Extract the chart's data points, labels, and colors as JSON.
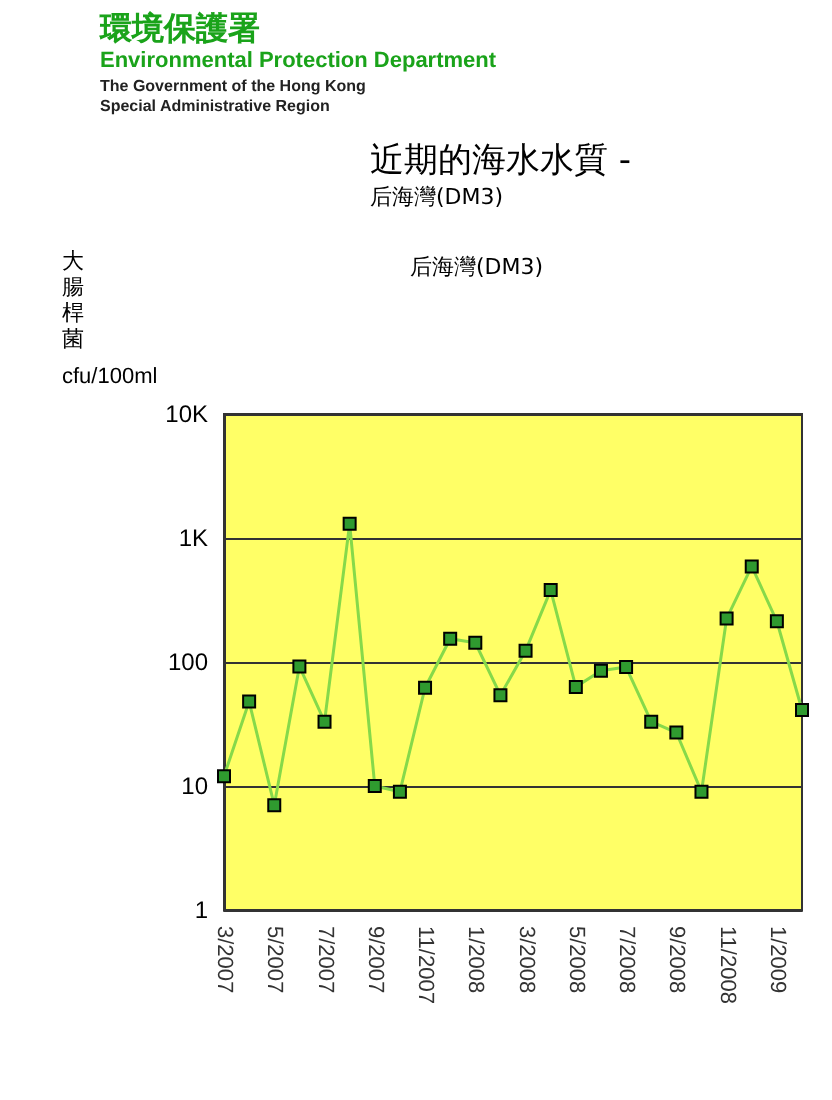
{
  "chart_data": {
    "type": "line",
    "title": "近期的海水水質 -",
    "subtitle": "后海灣(DM3)",
    "ylabel": "大腸桿菌",
    "annotations": [
      "環境保護署",
      "Environmental Protection Department",
      "The Government of the Hong Kong\nSpecial Administrative Region",
      "后海灣(DM3)",
      "cfu/100ml"
    ],
    "categories": [
      "3/2007",
      null,
      "5/2007",
      null,
      "7/2007",
      null,
      "9/2007",
      null,
      "11/2007",
      null,
      "1/2008",
      null,
      "3/2008",
      null,
      "5/2008",
      null,
      "7/2008",
      null,
      "9/2008",
      null,
      "11/2008",
      null,
      "1/2009",
      null
    ],
    "series": [
      {
        "color": "#86d94a",
        "values": [
          12,
          48,
          7,
          92,
          33,
          1300,
          10,
          9,
          62,
          154,
          143,
          54,
          123,
          380,
          63,
          85,
          91,
          33,
          27,
          9,
          224,
          590,
          213,
          41
        ]
      }
    ],
    "log": "y",
    "ylim": [
      1,
      10000
    ],
    "yticks": [
      1,
      10,
      100,
      {
        "value": 1000,
        "label": "1K"
      },
      {
        "value": 10000,
        "label": "10K"
      }
    ],
    "grid": "y",
    "marker": "square",
    "line_style": "solid"
  }
}
